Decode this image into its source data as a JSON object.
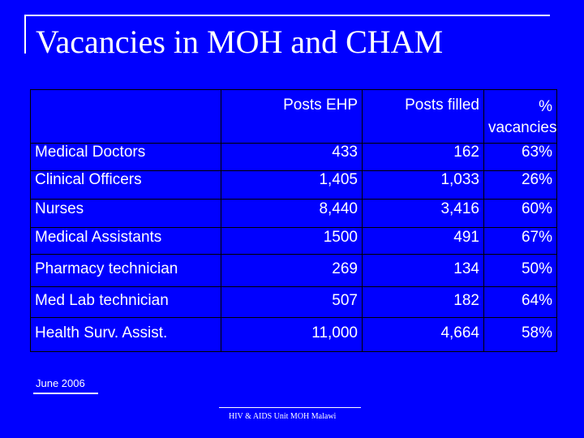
{
  "slide": {
    "title": "Vacancies in MOH and CHAM",
    "date_note": "June 2006",
    "footer": "HIV & AIDS Unit MOH Malawi"
  },
  "table": {
    "headers": [
      "",
      "Posts EHP",
      "Posts filled",
      "% vacancies"
    ],
    "header_lines": {
      "col3_line1": "%",
      "col3_line2": "vacancies"
    },
    "rows": [
      {
        "name": "Medical Doctors",
        "posts_ehp": "433",
        "posts_filled": "162",
        "vacancies": "63%"
      },
      {
        "name": "Clinical Officers",
        "posts_ehp": "1,405",
        "posts_filled": "1,033",
        "vacancies": "26%"
      },
      {
        "name": "Nurses",
        "posts_ehp": "8,440",
        "posts_filled": "3,416",
        "vacancies": "60%"
      },
      {
        "name": "Medical Assistants",
        "posts_ehp": "1500",
        "posts_filled": "491",
        "vacancies": "67%"
      },
      {
        "name": "Pharmacy technician",
        "posts_ehp": "269",
        "posts_filled": "134",
        "vacancies": "50%"
      },
      {
        "name": "Med Lab technician",
        "posts_ehp": "507",
        "posts_filled": "182",
        "vacancies": "64%"
      },
      {
        "name": "Health Surv. Assist.",
        "posts_ehp": "11,000",
        "posts_filled": "4,664",
        "vacancies": "58%"
      }
    ]
  },
  "colors": {
    "background": "#0000ff",
    "text": "#ffffff",
    "grid": "#000000"
  }
}
